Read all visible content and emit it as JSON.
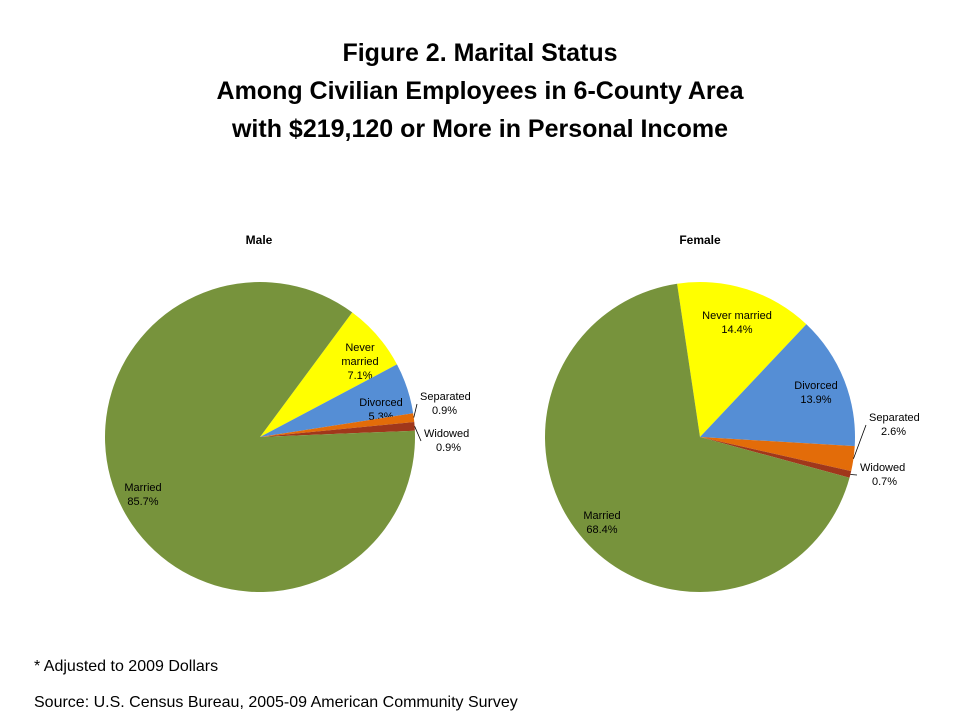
{
  "title": {
    "line1": "Figure 2. Marital Status",
    "line2": "Among Civilian Employees in 6-County Area",
    "line3": "with $219,120 or More in Personal Income"
  },
  "colors": {
    "never_married": "#ffff00",
    "divorced": "#558ed5",
    "separated": "#e36c09",
    "widowed": "#a0371b",
    "married": "#77933c"
  },
  "chart_data": [
    {
      "type": "pie",
      "title": "Male",
      "slices": [
        {
          "label": "Never married",
          "display": [
            "Never",
            "married"
          ],
          "value": 7.1,
          "value_text": "7.1%",
          "color_key": "never_married"
        },
        {
          "label": "Divorced",
          "display": [
            "Divorced"
          ],
          "value": 5.3,
          "value_text": "5.3%",
          "color_key": "divorced"
        },
        {
          "label": "Separated",
          "display": [
            "Separated"
          ],
          "value": 0.9,
          "value_text": "0.9%",
          "color_key": "separated"
        },
        {
          "label": "Widowed",
          "display": [
            "Widowed"
          ],
          "value": 0.9,
          "value_text": "0.9%",
          "color_key": "widowed"
        },
        {
          "label": "Married",
          "display": [
            "Married"
          ],
          "value": 85.7,
          "value_text": "85.7%",
          "color_key": "married"
        }
      ]
    },
    {
      "type": "pie",
      "title": "Female",
      "slices": [
        {
          "label": "Never married",
          "display": [
            "Never married"
          ],
          "value": 14.4,
          "value_text": "14.4%",
          "color_key": "never_married"
        },
        {
          "label": "Divorced",
          "display": [
            "Divorced"
          ],
          "value": 13.9,
          "value_text": "13.9%",
          "color_key": "divorced"
        },
        {
          "label": "Separated",
          "display": [
            "Separated"
          ],
          "value": 2.6,
          "value_text": "2.6%",
          "color_key": "separated"
        },
        {
          "label": "Widowed",
          "display": [
            "Widowed"
          ],
          "value": 0.7,
          "value_text": "0.7%",
          "color_key": "widowed"
        },
        {
          "label": "Married",
          "display": [
            "Married"
          ],
          "value": 68.4,
          "value_text": "68.4%",
          "color_key": "married"
        }
      ]
    }
  ],
  "footnote": "* Adjusted to 2009 Dollars",
  "source": "Source:  U.S. Census Bureau, 2005-09 American Community Survey"
}
